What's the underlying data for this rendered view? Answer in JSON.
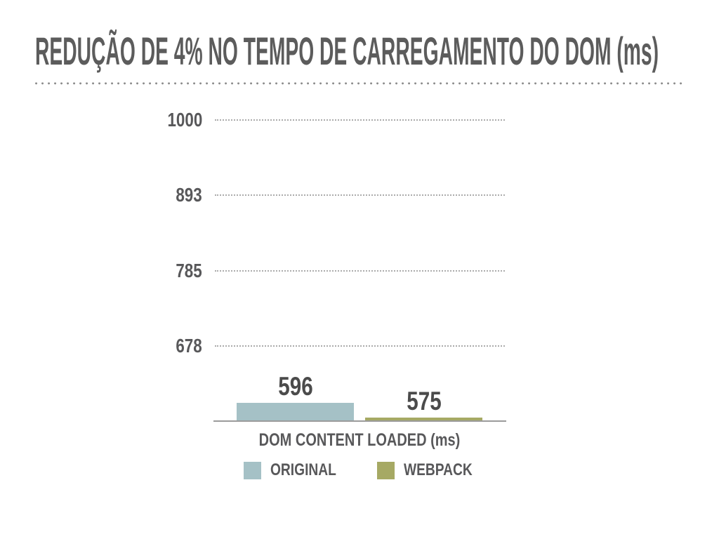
{
  "slide": {
    "title": "REDUÇÃO DE 4% NO TEMPO DE CARREGAMENTO DO DOM (ms)"
  },
  "chart_data": {
    "type": "bar",
    "title": "REDUÇÃO DE 4% NO TEMPO DE CARREGAMENTO DO DOM (ms)",
    "categories": [
      "ORIGINAL",
      "WEBPACK"
    ],
    "values": [
      596,
      575
    ],
    "value_labels": [
      "596",
      "575"
    ],
    "xlabel": "DOM CONTENT LOADED (ms)",
    "ylabel": "",
    "yticks": [
      678,
      785,
      893,
      1000
    ],
    "ylim": [
      570,
      1030
    ],
    "grid": "horizontal-dotted",
    "legend_position": "bottom",
    "legend": [
      "ORIGINAL",
      "WEBPACK"
    ],
    "series_colors": {
      "ORIGINAL": "#a5c1c6",
      "WEBPACK": "#a6a964"
    }
  },
  "colors": {
    "background": "#ffffff",
    "title_text": "#5c5c5c",
    "axis_text": "#58585a",
    "value_text": "#4b4b4b",
    "gridline": "#ababab",
    "axis_line": "#9b9b9b",
    "original_bar": "#a5c1c6",
    "webpack_bar": "#a6a964"
  }
}
